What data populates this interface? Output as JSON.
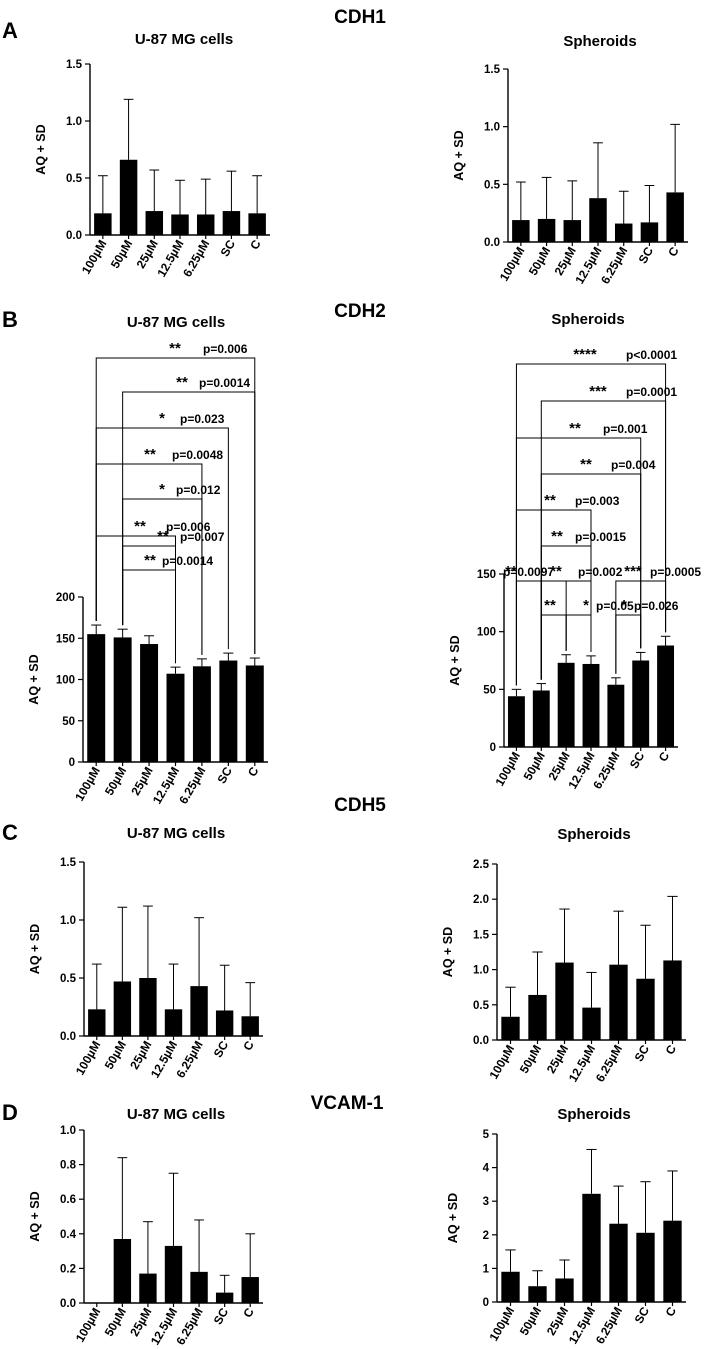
{
  "figure": {
    "genes": [
      "CDH1",
      "CDH2",
      "CDH5",
      "VCAM-1"
    ],
    "panel_letters": [
      "A",
      "B",
      "C",
      "D"
    ]
  },
  "colors": {
    "bar": "#000000",
    "axis": "#000000",
    "bracket": "#000000",
    "background": "#ffffff"
  },
  "chart_data": [
    {
      "type": "bar",
      "panel": "A",
      "title": "U-87 MG cells",
      "ylabel": "AQ + SD",
      "categories": [
        "100µM",
        "50µM",
        "25µM",
        "12.5µM",
        "6.25µM",
        "SC",
        "C"
      ],
      "values": [
        0.19,
        0.66,
        0.21,
        0.18,
        0.18,
        0.21,
        0.19
      ],
      "sd": [
        0.33,
        0.53,
        0.36,
        0.3,
        0.31,
        0.35,
        0.33
      ],
      "ylim": [
        0,
        1.5
      ],
      "yticks": [
        0,
        0.5,
        1.0,
        1.5
      ],
      "ytick_labels": [
        "0.0",
        "0.5",
        "1.0",
        "1.5"
      ],
      "annotations": []
    },
    {
      "type": "bar",
      "panel": "A",
      "title": "Spheroids",
      "ylabel": "AQ + SD",
      "categories": [
        "100µM",
        "50µM",
        "25µM",
        "12.5µM",
        "6.25µM",
        "SC",
        "C"
      ],
      "values": [
        0.19,
        0.2,
        0.19,
        0.38,
        0.16,
        0.17,
        0.43
      ],
      "sd": [
        0.33,
        0.36,
        0.34,
        0.48,
        0.28,
        0.32,
        0.59
      ],
      "ylim": [
        0,
        1.5
      ],
      "yticks": [
        0,
        0.5,
        1.0,
        1.5
      ],
      "ytick_labels": [
        "0.0",
        "0.5",
        "1.0",
        "1.5"
      ],
      "annotations": []
    },
    {
      "type": "bar",
      "panel": "B",
      "title": "U-87 MG cells",
      "ylabel": "AQ + SD",
      "categories": [
        "100µM",
        "50µM",
        "25µM",
        "12.5µM",
        "6.25µM",
        "SC",
        "C"
      ],
      "values": [
        155,
        151,
        143,
        107,
        116,
        123,
        117
      ],
      "sd": [
        11,
        10,
        10,
        8,
        9,
        9,
        9
      ],
      "ylim": [
        0,
        200
      ],
      "yticks": [
        0,
        50,
        100,
        150,
        200
      ],
      "ytick_labels": [
        "0",
        "50",
        "100",
        "150",
        "200"
      ],
      "annotations": [
        {
          "from": 1,
          "to": 3,
          "stars": "**",
          "p": "p=0.007"
        },
        {
          "from": 1,
          "to": 3,
          "stars": "**",
          "p": "p=0.0014"
        },
        {
          "from": 0,
          "to": 3,
          "stars": "**",
          "p": "p=0.006"
        },
        {
          "from": 1,
          "to": 4,
          "stars": "*",
          "p": "p=0.012"
        },
        {
          "from": 0,
          "to": 4,
          "stars": "**",
          "p": "p=0.0048"
        },
        {
          "from": 0,
          "to": 5,
          "stars": "*",
          "p": "p=0.023"
        },
        {
          "from": 1,
          "to": 6,
          "stars": "**",
          "p": "p=0.0014"
        },
        {
          "from": 0,
          "to": 6,
          "stars": "**",
          "p": "p=0.006"
        }
      ]
    },
    {
      "type": "bar",
      "panel": "B",
      "title": "Spheroids",
      "ylabel": "AQ + SD",
      "categories": [
        "100µM",
        "50µM",
        "25µM",
        "12.5µM",
        "6.25µM",
        "SC",
        "C"
      ],
      "values": [
        44,
        49,
        73,
        72,
        54,
        75,
        88
      ],
      "sd": [
        6,
        6,
        7,
        7,
        6,
        7,
        8
      ],
      "ylim": [
        0,
        150
      ],
      "yticks": [
        0,
        50,
        100,
        150
      ],
      "ytick_labels": [
        "0",
        "50",
        "100",
        "150"
      ],
      "annotations": [
        {
          "from": 1,
          "to": 2,
          "stars": "**",
          "p": ""
        },
        {
          "from": 2,
          "to": 3,
          "stars": "*",
          "p": "p=0.05"
        },
        {
          "from": 4,
          "to": 5,
          "stars": "*",
          "p": "p=0.026"
        },
        {
          "from": 0,
          "to": 2,
          "stars": "**",
          "p": "p=0.0097"
        },
        {
          "from": 1,
          "to": 3,
          "stars": "**",
          "p": "p=0.002"
        },
        {
          "from": 4,
          "to": 6,
          "stars": "***",
          "p": "p=0.0005"
        },
        {
          "from": 1,
          "to": 3,
          "stars": "**",
          "p": "p=0.0015"
        },
        {
          "from": 0,
          "to": 3,
          "stars": "**",
          "p": "p=0.003"
        },
        {
          "from": 1,
          "to": 5,
          "stars": "**",
          "p": "p=0.004"
        },
        {
          "from": 0,
          "to": 5,
          "stars": "**",
          "p": "p=0.001"
        },
        {
          "from": 1,
          "to": 6,
          "stars": "***",
          "p": "p=0.0001"
        },
        {
          "from": 0,
          "to": 6,
          "stars": "****",
          "p": "p<0.0001"
        }
      ]
    },
    {
      "type": "bar",
      "panel": "C",
      "title": "U-87 MG cells",
      "ylabel": "AQ + SD",
      "categories": [
        "100µM",
        "50µM",
        "25µM",
        "12.5µM",
        "6.25µM",
        "SC",
        "C"
      ],
      "values": [
        0.23,
        0.47,
        0.5,
        0.23,
        0.43,
        0.22,
        0.17
      ],
      "sd": [
        0.39,
        0.64,
        0.62,
        0.39,
        0.59,
        0.39,
        0.29
      ],
      "ylim": [
        0,
        1.5
      ],
      "yticks": [
        0,
        0.5,
        1.0,
        1.5
      ],
      "ytick_labels": [
        "0.0",
        "0.5",
        "1.0",
        "1.5"
      ],
      "annotations": []
    },
    {
      "type": "bar",
      "panel": "C",
      "title": "Spheroids",
      "ylabel": "AQ + SD",
      "categories": [
        "100µM",
        "50µM",
        "25µM",
        "12.5µM",
        "6.25µM",
        "SC",
        "C"
      ],
      "values": [
        0.33,
        0.64,
        1.1,
        0.46,
        1.07,
        0.87,
        1.13
      ],
      "sd": [
        0.42,
        0.61,
        0.76,
        0.5,
        0.76,
        0.76,
        0.91
      ],
      "ylim": [
        0,
        2.5
      ],
      "yticks": [
        0,
        0.5,
        1.0,
        1.5,
        2.0,
        2.5
      ],
      "ytick_labels": [
        "0.0",
        "0.5",
        "1.0",
        "1.5",
        "2.0",
        "2.5"
      ],
      "annotations": []
    },
    {
      "type": "bar",
      "panel": "D",
      "title": "U-87 MG cells",
      "ylabel": "AQ + SD",
      "categories": [
        "100µM",
        "50µM",
        "25µM",
        "12.5µM",
        "6.25µM",
        "SC",
        "C"
      ],
      "values": [
        0.0,
        0.37,
        0.17,
        0.33,
        0.18,
        0.06,
        0.15
      ],
      "sd": [
        0.0,
        0.47,
        0.3,
        0.42,
        0.3,
        0.1,
        0.25
      ],
      "ylim": [
        0,
        1.0
      ],
      "yticks": [
        0,
        0.2,
        0.4,
        0.6,
        0.8,
        1.0
      ],
      "ytick_labels": [
        "0.0",
        "0.2",
        "0.4",
        "0.6",
        "0.8",
        "1.0"
      ],
      "annotations": []
    },
    {
      "type": "bar",
      "panel": "D",
      "title": "Spheroids",
      "ylabel": "AQ + SD",
      "categories": [
        "100µM",
        "50µM",
        "25µM",
        "12.5µM",
        "6.25µM",
        "SC",
        "C"
      ],
      "values": [
        0.9,
        0.47,
        0.7,
        3.22,
        2.33,
        2.06,
        2.42
      ],
      "sd": [
        0.65,
        0.46,
        0.55,
        1.32,
        1.12,
        1.52,
        1.48
      ],
      "ylim": [
        0,
        5
      ],
      "yticks": [
        0,
        1,
        2,
        3,
        4,
        5
      ],
      "ytick_labels": [
        "0",
        "1",
        "2",
        "3",
        "4",
        "5"
      ],
      "annotations": []
    }
  ]
}
